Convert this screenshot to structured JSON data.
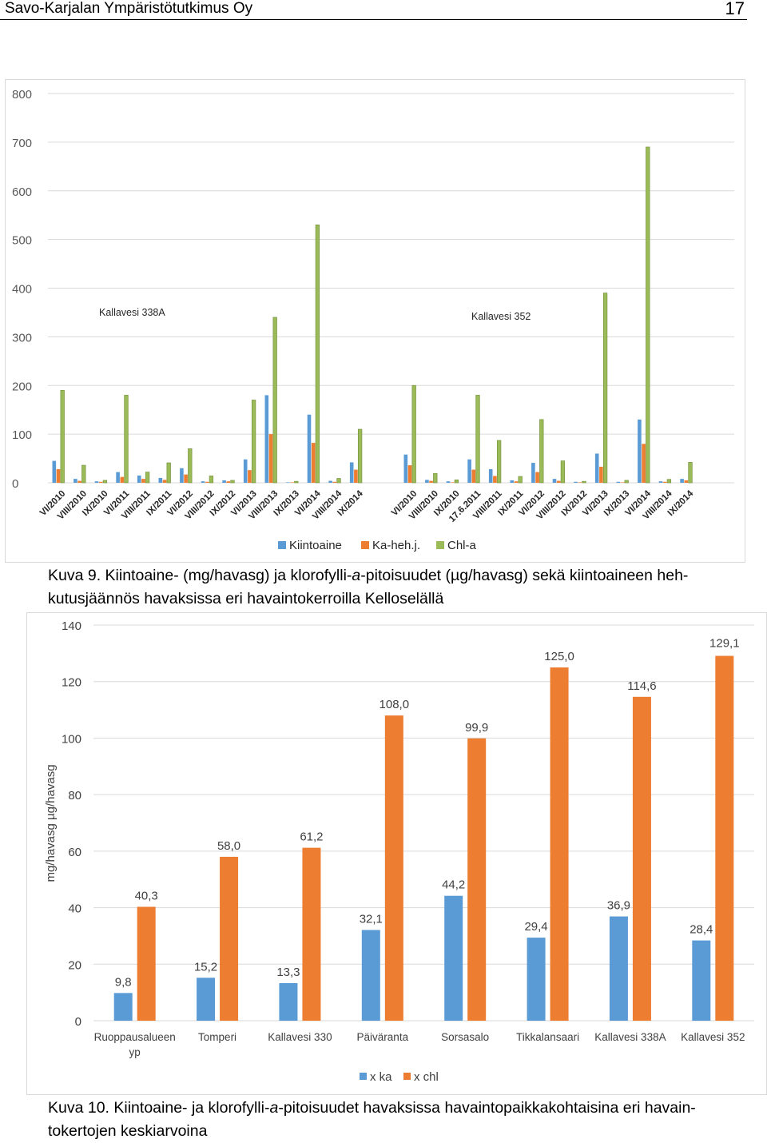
{
  "header": {
    "title": "Savo-Karjalan Ympäristötutkimus Oy",
    "page_number": "17"
  },
  "colors": {
    "blue": "#5b9bd5",
    "orange": "#ed7d31",
    "green": "#9bbb59",
    "grid": "#d9d9d9"
  },
  "chart_data": [
    {
      "type": "bar",
      "title": "",
      "ylim": [
        0,
        800
      ],
      "yticks": [
        "0",
        "100",
        "200",
        "300",
        "400",
        "500",
        "600",
        "700",
        "800"
      ],
      "station_labels": [
        "Kallavesi 338A",
        "Kallavesi 352"
      ],
      "legend": [
        "Kiintoaine",
        "Ka-heh.j.",
        "Chl-a"
      ],
      "groups": [
        {
          "station": "Kallavesi 338A",
          "categories": [
            "VI/2010",
            "VIII/2010",
            "IX/2010",
            "VI/2011",
            "VIII/2011",
            "IX/2011",
            "VI/2012",
            "VIII/2012",
            "IX/2012",
            "VI/2013",
            "VIII/2013",
            "IX/2013",
            "VI/2014",
            "VIII/2014",
            "IX/2014"
          ],
          "series": [
            {
              "name": "Kiintoaine",
              "values": [
                45,
                8,
                3,
                22,
                15,
                10,
                30,
                3,
                5,
                48,
                180,
                1,
                140,
                4,
                42
              ]
            },
            {
              "name": "Ka-heh.j.",
              "values": [
                28,
                4,
                2,
                12,
                8,
                6,
                17,
                2,
                3,
                26,
                100,
                1,
                82,
                2,
                27
              ]
            },
            {
              "name": "Chl-a",
              "values": [
                190,
                36,
                5,
                180,
                22,
                41,
                70,
                14,
                5,
                170,
                340,
                3,
                530,
                9,
                110
              ]
            }
          ]
        },
        {
          "station": "Kallavesi 352",
          "categories": [
            "VI/2010",
            "VIII/2010",
            "IX/2010",
            "17.6.2011",
            "VIII/2011",
            "IX/2011",
            "VI/2012",
            "VIII/2012",
            "IX/2012",
            "VI/2013",
            "IX/2013",
            "VI/2014",
            "VIII/2014",
            "IX/2014"
          ],
          "series": [
            {
              "name": "Kiintoaine",
              "values": [
                58,
                6,
                3,
                48,
                28,
                5,
                41,
                8,
                2,
                60,
                2,
                130,
                3,
                8
              ]
            },
            {
              "name": "Ka-heh.j.",
              "values": [
                36,
                4,
                1,
                27,
                14,
                3,
                22,
                4,
                1,
                33,
                1,
                80,
                2,
                5
              ]
            },
            {
              "name": "Chl-a",
              "values": [
                200,
                19,
                6,
                180,
                87,
                13,
                130,
                45,
                3,
                390,
                5,
                690,
                7,
                42
              ]
            }
          ]
        }
      ]
    },
    {
      "type": "bar",
      "title": "",
      "ylabel": "mg/havasg   µg/havasg",
      "ylim": [
        0,
        140
      ],
      "yticks": [
        "0",
        "20",
        "40",
        "60",
        "80",
        "100",
        "120",
        "140"
      ],
      "categories": [
        "Ruoppausalueen yp",
        "Tomperi",
        "Kallavesi 330",
        "Päiväranta",
        "Sorsasalo",
        "Tikkalansaari",
        "Kallavesi 338A",
        "Kallavesi 352"
      ],
      "series": [
        {
          "name": "x ka",
          "values": [
            9.8,
            15.2,
            13.3,
            32.1,
            44.2,
            29.4,
            36.9,
            28.4
          ],
          "labels": [
            "9,8",
            "15,2",
            "13,3",
            "32,1",
            "44,2",
            "29,4",
            "36,9",
            "28,4"
          ]
        },
        {
          "name": "x chl",
          "values": [
            40.3,
            58.0,
            61.2,
            108.0,
            99.9,
            125.0,
            114.6,
            129.1
          ],
          "labels": [
            "40,3",
            "58,0",
            "61,2",
            "108,0",
            "99,9",
            "125,0",
            "114,6",
            "129,1"
          ]
        }
      ]
    }
  ],
  "captions": {
    "fig9_prefix": "Kuva 9. Kiintoaine- (mg/havasg) ja klorofylli-",
    "fig9_italic": "a",
    "fig9_suffix": "-pitoisuudet (µg/havasg) sekä kiintoaineen heh-",
    "fig9_line2": "kutusjäännös havaksissa eri havaintokerroilla Kelloselällä",
    "fig10_prefix": "Kuva 10. Kiintoaine- ja klorofylli-",
    "fig10_italic": "a",
    "fig10_suffix": "-pitoisuudet havaksissa havaintopaikkakohtaisina eri havain-",
    "fig10_line2": "tokertojen keskiarvoina"
  }
}
